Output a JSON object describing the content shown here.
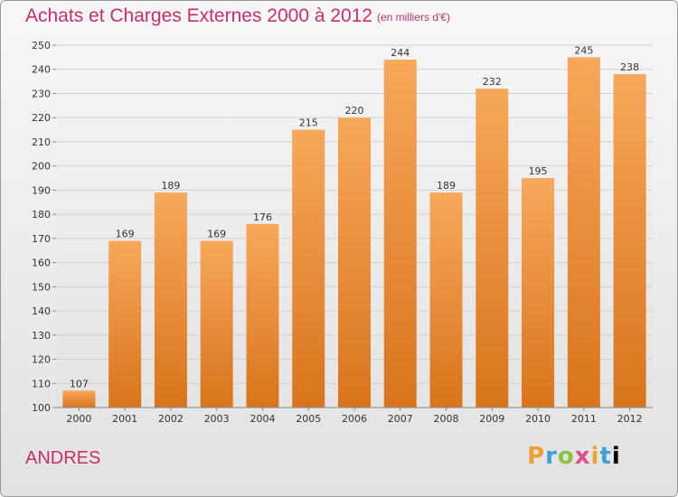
{
  "header": {
    "title": "Achats et Charges Externes 2000 à 2012",
    "subtitle": "(en milliers d'€)"
  },
  "footer": {
    "commune": "ANDRES",
    "logo_letters": [
      "P",
      "r",
      "o",
      "x",
      "i",
      "t",
      "i"
    ]
  },
  "colors": {
    "title": "#c8306a",
    "bar_light": "#f7a85a",
    "bar_dark": "#d9741c"
  },
  "chart_data": {
    "type": "bar",
    "categories": [
      "2000",
      "2001",
      "2002",
      "2003",
      "2004",
      "2005",
      "2006",
      "2007",
      "2008",
      "2009",
      "2010",
      "2011",
      "2012"
    ],
    "values": [
      107,
      169,
      189,
      169,
      176,
      215,
      220,
      244,
      189,
      232,
      195,
      245,
      238
    ],
    "title": "Achats et Charges Externes 2000 à 2012",
    "subtitle": "(en milliers d'€)",
    "xlabel": "",
    "ylabel": "",
    "ylim": [
      100,
      250
    ],
    "yticks": [
      100,
      110,
      120,
      130,
      140,
      150,
      160,
      170,
      180,
      190,
      200,
      210,
      220,
      230,
      240,
      250
    ],
    "grid": true
  }
}
